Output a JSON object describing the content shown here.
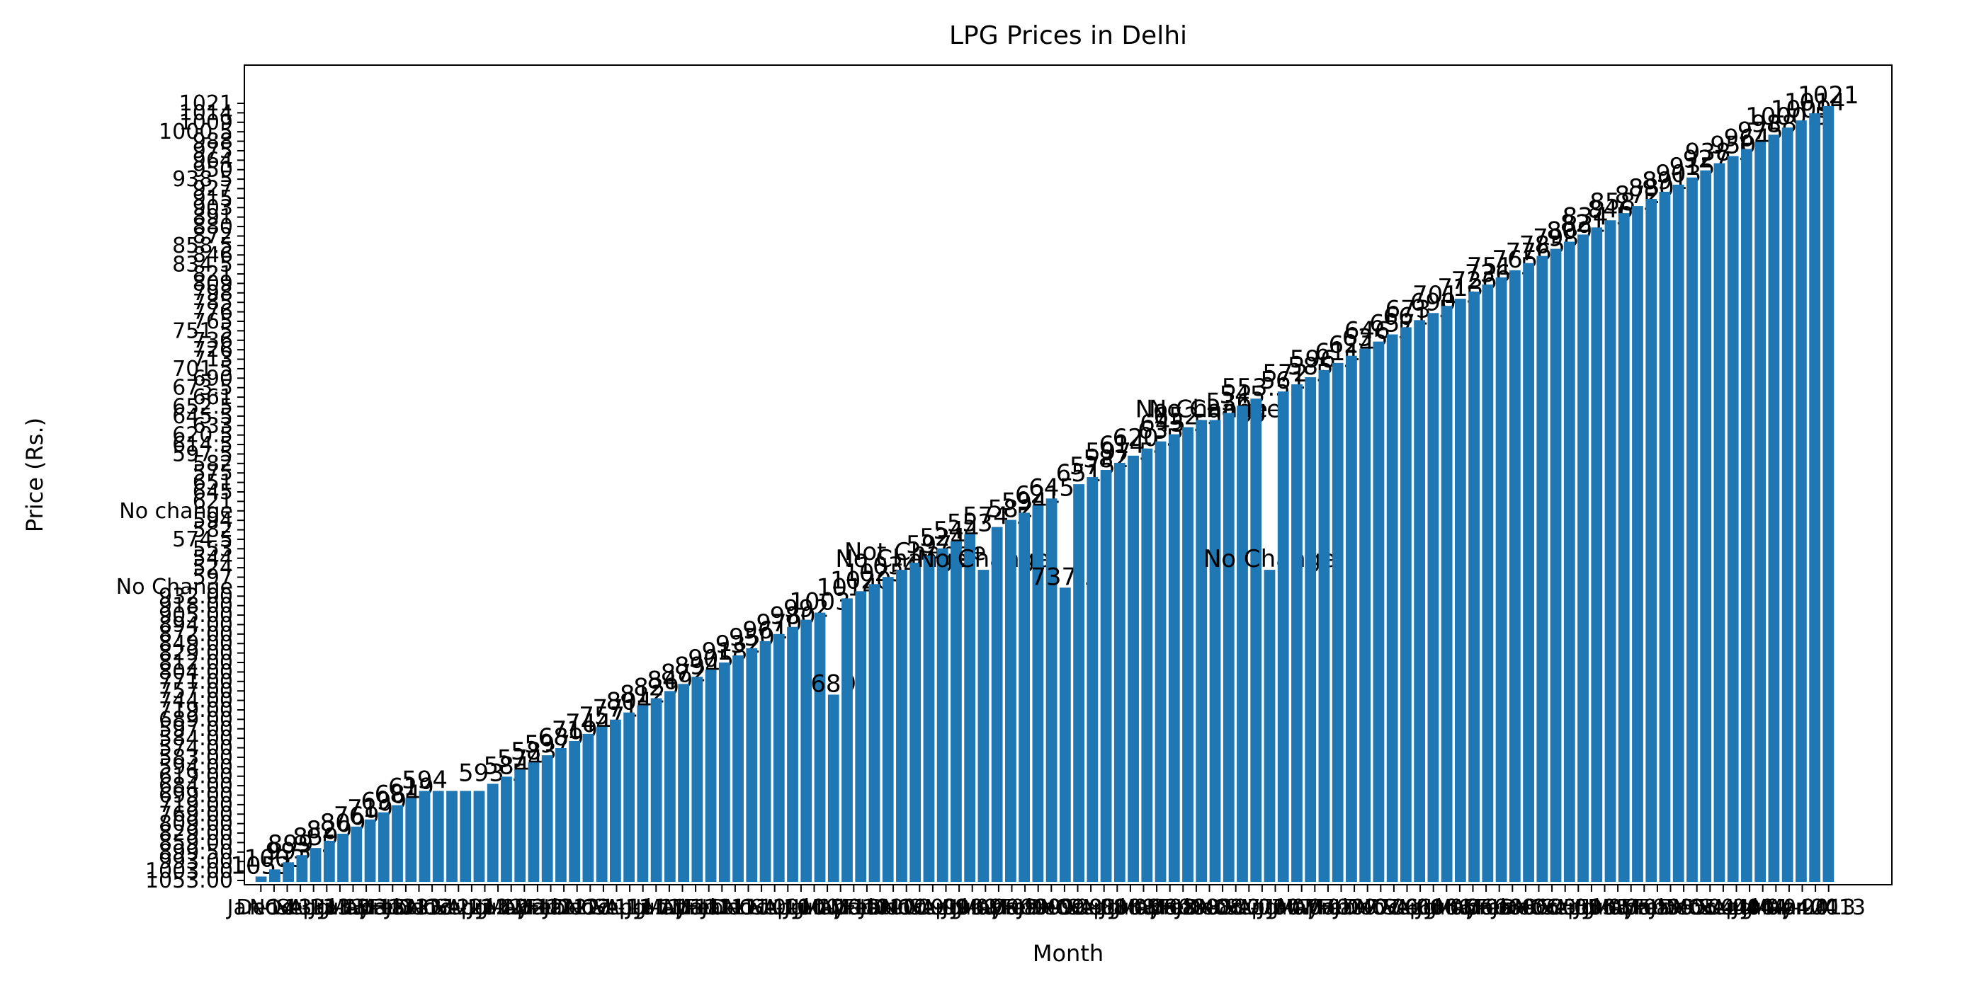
{
  "chart_data": {
    "type": "bar",
    "title": "LPG Prices in Delhi",
    "xlabel": "Month",
    "ylabel": "Price (Rs.)",
    "color": "#1f77b4",
    "values": [
      {
        "v": 6,
        "label": "1053"
      },
      {
        "v": 14,
        "label": "1003"
      },
      {
        "v": 22,
        "label": "993"
      },
      {
        "v": 30,
        "label": "899.5"
      },
      {
        "v": 38,
        "label": "859"
      },
      {
        "v": 46,
        "label": "829"
      },
      {
        "v": 54,
        "label": "809"
      },
      {
        "v": 62,
        "label": "769"
      },
      {
        "v": 70,
        "label": "719"
      },
      {
        "v": 78,
        "label": "699"
      },
      {
        "v": 86,
        "label": "684"
      },
      {
        "v": 94,
        "label": "619"
      },
      {
        "v": 102,
        "label": "594"
      },
      {
        "v": 102,
        "label": ""
      },
      {
        "v": 102,
        "label": ""
      },
      {
        "v": 102,
        "label": ""
      },
      {
        "v": 102,
        "label": ""
      },
      {
        "v": 110,
        "label": "593.5"
      },
      {
        "v": 118,
        "label": "584"
      },
      {
        "v": 126,
        "label": "574"
      },
      {
        "v": 134,
        "label": "583"
      },
      {
        "v": 142,
        "label": "597"
      },
      {
        "v": 150,
        "label": "689"
      },
      {
        "v": 158,
        "label": "719"
      },
      {
        "v": 166,
        "label": "744"
      },
      {
        "v": 174,
        "label": "757"
      },
      {
        "v": 182,
        "label": "771"
      },
      {
        "v": 190,
        "label": "804"
      },
      {
        "v": 198,
        "label": "812"
      },
      {
        "v": 206,
        "label": "829"
      },
      {
        "v": 214,
        "label": "849"
      },
      {
        "v": 222,
        "label": "872"
      },
      {
        "v": 230,
        "label": "894"
      },
      {
        "v": 238,
        "label": "905"
      },
      {
        "v": 246,
        "label": "918"
      },
      {
        "v": 254,
        "label": "932"
      },
      {
        "v": 262,
        "label": "950"
      },
      {
        "v": 270,
        "label": "961"
      },
      {
        "v": 278,
        "label": "970"
      },
      {
        "v": 286,
        "label": "980"
      },
      {
        "v": 294,
        "label": "992"
      },
      {
        "v": 302,
        "label": "1003"
      },
      {
        "v": 210,
        "label": "689"
      },
      {
        "v": 318,
        "label": "1014"
      },
      {
        "v": 326,
        "label": "1020"
      },
      {
        "v": 334,
        "label": "1025"
      },
      {
        "v": 342,
        "label": "1034"
      },
      {
        "v": 350,
        "label": "No Change"
      },
      {
        "v": 358,
        "label": "Not Change"
      },
      {
        "v": 366,
        "label": "597"
      },
      {
        "v": 374,
        "label": "524"
      },
      {
        "v": 382,
        "label": "544"
      },
      {
        "v": 390,
        "label": "553"
      },
      {
        "v": 350,
        "label": "No Change"
      },
      {
        "v": 398,
        "label": "574.5"
      },
      {
        "v": 406,
        "label": "582"
      },
      {
        "v": 414,
        "label": "594"
      },
      {
        "v": 422,
        "label": "621"
      },
      {
        "v": 430,
        "label": "645"
      },
      {
        "v": 330,
        "label": "737.5"
      },
      {
        "v": 446,
        "label": "651"
      },
      {
        "v": 454,
        "label": "575"
      },
      {
        "v": 462,
        "label": "582"
      },
      {
        "v": 470,
        "label": "597.5"
      },
      {
        "v": 478,
        "label": "614.5"
      },
      {
        "v": 486,
        "label": "620.5"
      },
      {
        "v": 494,
        "label": "633"
      },
      {
        "v": 502,
        "label": "645.5"
      },
      {
        "v": 510,
        "label": "652.5"
      },
      {
        "v": 518,
        "label": "No Change"
      },
      {
        "v": 518,
        "label": "No Change"
      },
      {
        "v": 526,
        "label": "536"
      },
      {
        "v": 534,
        "label": "545"
      },
      {
        "v": 542,
        "label": "553.5"
      },
      {
        "v": 350,
        "label": "No Change"
      },
      {
        "v": 550,
        "label": "561"
      },
      {
        "v": 558,
        "label": "572.5"
      },
      {
        "v": 566,
        "label": "585"
      },
      {
        "v": 574,
        "label": "596.5"
      },
      {
        "v": 582,
        "label": "611"
      },
      {
        "v": 590,
        "label": "624"
      },
      {
        "v": 598,
        "label": "635"
      },
      {
        "v": 606,
        "label": "646.5"
      },
      {
        "v": 614,
        "label": "657"
      },
      {
        "v": 622,
        "label": "661"
      },
      {
        "v": 630,
        "label": "673.5"
      },
      {
        "v": 638,
        "label": "690"
      },
      {
        "v": 646,
        "label": "701.5"
      },
      {
        "v": 654,
        "label": "713"
      },
      {
        "v": 662,
        "label": "726"
      },
      {
        "v": 670,
        "label": "736"
      },
      {
        "v": 678,
        "label": "751.5"
      },
      {
        "v": 686,
        "label": "765"
      },
      {
        "v": 694,
        "label": "776"
      },
      {
        "v": 702,
        "label": "785"
      },
      {
        "v": 710,
        "label": "798"
      },
      {
        "v": 718,
        "label": "809"
      },
      {
        "v": 726,
        "label": "821"
      },
      {
        "v": 734,
        "label": "834.5"
      },
      {
        "v": 742,
        "label": "846"
      },
      {
        "v": 750,
        "label": "858.5"
      },
      {
        "v": 758,
        "label": "872"
      },
      {
        "v": 766,
        "label": "880"
      },
      {
        "v": 774,
        "label": "891"
      },
      {
        "v": 782,
        "label": "903"
      },
      {
        "v": 790,
        "label": "915"
      },
      {
        "v": 798,
        "label": "927"
      },
      {
        "v": 806,
        "label": "938.5"
      },
      {
        "v": 814,
        "label": "950"
      },
      {
        "v": 822,
        "label": "964"
      },
      {
        "v": 830,
        "label": "975"
      },
      {
        "v": 838,
        "label": "988"
      },
      {
        "v": 846,
        "label": "1000.5"
      },
      {
        "v": 854,
        "label": "1009"
      },
      {
        "v": 862,
        "label": "1014"
      },
      {
        "v": 870,
        "label": "1021"
      }
    ],
    "yticks": [
      "1053.00",
      "1003.00",
      "993.00",
      "899.50",
      "859.00",
      "829.00",
      "809.00",
      "769.00",
      "719.00",
      "699.00",
      "684.00",
      "619.00",
      "594.00",
      "583.00",
      "574.00",
      "584.00",
      "597.00",
      "689.00",
      "719.00",
      "744.00",
      "757.00",
      "771.00",
      "804.00",
      "812.00",
      "829.00",
      "849.00",
      "872.00",
      "894.00",
      "905.00",
      "918.00",
      "932.00",
      "No Change",
      "597",
      "524",
      "544",
      "553",
      "574.5",
      "582",
      "594",
      "No change",
      "621",
      "645",
      "651",
      "575",
      "582",
      "597.5",
      "614.5",
      "620.5",
      "633",
      "645.5",
      "652.5",
      "661",
      "673.5",
      "690",
      "701.5",
      "713",
      "726",
      "736",
      "751.5",
      "765",
      "776",
      "785",
      "798",
      "809",
      "821",
      "834.5",
      "846",
      "858.5",
      "872",
      "880",
      "891",
      "903",
      "915",
      "927",
      "938.5",
      "950",
      "964",
      "975",
      "988",
      "1000.5",
      "1009",
      "1014",
      "1021"
    ],
    "xticks_note": "Month tick labels overlap densely",
    "xticks": [
      "Jan-14",
      "Dec-13",
      "Nov-13",
      "Oct-13",
      "Sep-13",
      "Aug-13",
      "Jul-13",
      "Jun-13",
      "May-13",
      "Apr-13",
      "Mar-13",
      "Feb-13",
      "Jan-13",
      "Dec-12",
      "Nov-12",
      "Oct-12",
      "Sep-12",
      "Aug-12",
      "Jul-12",
      "Jun-12",
      "May-12",
      "Apr-12",
      "Mar-12",
      "Feb-12",
      "Jan-12",
      "Dec-11",
      "Nov-11",
      "Oct-11",
      "Sep-11",
      "Aug-11",
      "Jul-11",
      "Jun-11",
      "May-11",
      "Apr-11",
      "Mar-11",
      "Feb-11",
      "Jan-11",
      "Dec-10",
      "Nov-10",
      "Oct-10",
      "Sep-10",
      "Aug-10",
      "Jul-10",
      "Jun-10",
      "May-10",
      "Apr-10",
      "Mar-10",
      "Feb-10",
      "Jan-10",
      "Dec-09",
      "Nov-09",
      "Oct-09",
      "Sep-09",
      "Aug-09",
      "Jul-09",
      "Jun-09",
      "May-09",
      "Apr-09",
      "Mar-09",
      "Feb-09",
      "Jan-09",
      "Dec-08",
      "Nov-08",
      "Oct-08",
      "Sep-08",
      "Aug-08",
      "Jul-08",
      "Jun-08",
      "May-08",
      "Apr-08",
      "Mar-08",
      "Feb-08",
      "Jan-08",
      "Dec-07",
      "Nov-07",
      "Oct-07",
      "Sep-07",
      "Aug-07",
      "Jul-07",
      "Jun-07",
      "May-07",
      "Apr-07",
      "Mar-07",
      "Feb-07",
      "Jan-07",
      "Dec-06",
      "Nov-06",
      "Oct-06",
      "Sep-06",
      "Aug-06",
      "Jul-06",
      "Jun-06",
      "May-06",
      "Apr-06",
      "Mar-06",
      "Feb-06",
      "Jan-06",
      "Dec-05",
      "Nov-05",
      "Oct-05",
      "Sep-05",
      "Aug-05",
      "Jul-05",
      "Jun-05",
      "May-05",
      "Apr-05",
      "Mar-05",
      "Feb-05",
      "Jan-05",
      "Dec-04",
      "Nov-04",
      "Oct-04",
      "Sep-04",
      "Aug-04",
      "Jul-04",
      "Jun-04",
      "May-04",
      "Apr-04",
      "Mar-2013",
      "2013"
    ]
  }
}
